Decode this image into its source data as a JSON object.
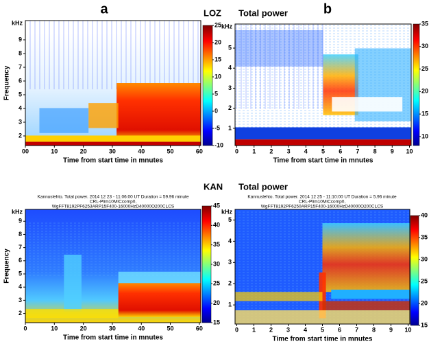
{
  "chart_data": [
    {
      "type": "spectrogram",
      "panel_label": "a",
      "station": "LOZ",
      "title": "Total power",
      "xlabel": "Time from start time in mnutes",
      "ylabel": "Frequency",
      "y_unit": "kHz",
      "xlim": [
        0,
        60.5
      ],
      "xticks": [
        {
          "value": 0,
          "label": "00"
        },
        10,
        20,
        30,
        40,
        50,
        60
      ],
      "ylim": [
        1.3,
        10.4
      ],
      "yticks": [
        2,
        3,
        4,
        5,
        6,
        7,
        8,
        9
      ],
      "clim": [
        -10,
        25
      ],
      "cticks": [
        -10,
        -5,
        0,
        5,
        10,
        15,
        20,
        25
      ]
    },
    {
      "type": "spectrogram",
      "panel_label": "b",
      "xlabel": "Time from start time in mnutes",
      "y_unit": "kHz",
      "xlim": [
        -0.1,
        10.1
      ],
      "xticks": [
        0,
        1,
        2,
        3,
        4,
        5,
        6,
        7,
        8,
        9,
        10
      ],
      "ylim": [
        0.14,
        6.2
      ],
      "yticks": [
        1,
        2,
        3,
        4,
        5
      ],
      "clim": [
        8,
        35
      ],
      "cticks": [
        10,
        15,
        20,
        25,
        30,
        35
      ]
    },
    {
      "type": "spectrogram",
      "station": "KAN",
      "title": "Total power",
      "header": [
        "Kannuslehto. Total power. 2014 12 23 - 11:06:00 UT  Duration = 59.96 minute",
        "CRL-Plim10MICcomp0,",
        "WgFFT8192PF6253ARP15F400-16000HzD40000O200CLCS"
      ],
      "xlabel": "Time from start time in mnutes",
      "ylabel": "Frequency",
      "y_unit": "kHz",
      "xlim": [
        0,
        60.5
      ],
      "xticks": [
        0,
        10,
        20,
        30,
        40,
        50,
        60
      ],
      "ylim": [
        1.3,
        9.9
      ],
      "yticks": [
        2,
        3,
        4,
        5,
        6,
        7,
        8,
        9
      ],
      "clim": [
        15,
        45
      ],
      "cticks": [
        15,
        20,
        25,
        30,
        35,
        40,
        45
      ]
    },
    {
      "type": "spectrogram",
      "header": [
        "Kannuslehto. Total power. 2014 12 25 - 11:10:00 UT  Duration = 5.96 minute",
        "CRL-Plim10MICcomp0,",
        "WgFFT8192PF6250ARP15F400-16000HzD40000O200CLCS"
      ],
      "xlabel": "Time from start time in mnutes",
      "y_unit": "kHz",
      "xlim": [
        -0.1,
        10.1
      ],
      "xticks": [
        0,
        1,
        2,
        3,
        4,
        5,
        6,
        7,
        8,
        9,
        10
      ],
      "ylim": [
        0.1,
        5.5
      ],
      "yticks": [
        1,
        2,
        3,
        4,
        5
      ],
      "clim": [
        15,
        40
      ],
      "cticks": [
        15,
        20,
        25,
        30,
        35,
        40
      ]
    }
  ]
}
